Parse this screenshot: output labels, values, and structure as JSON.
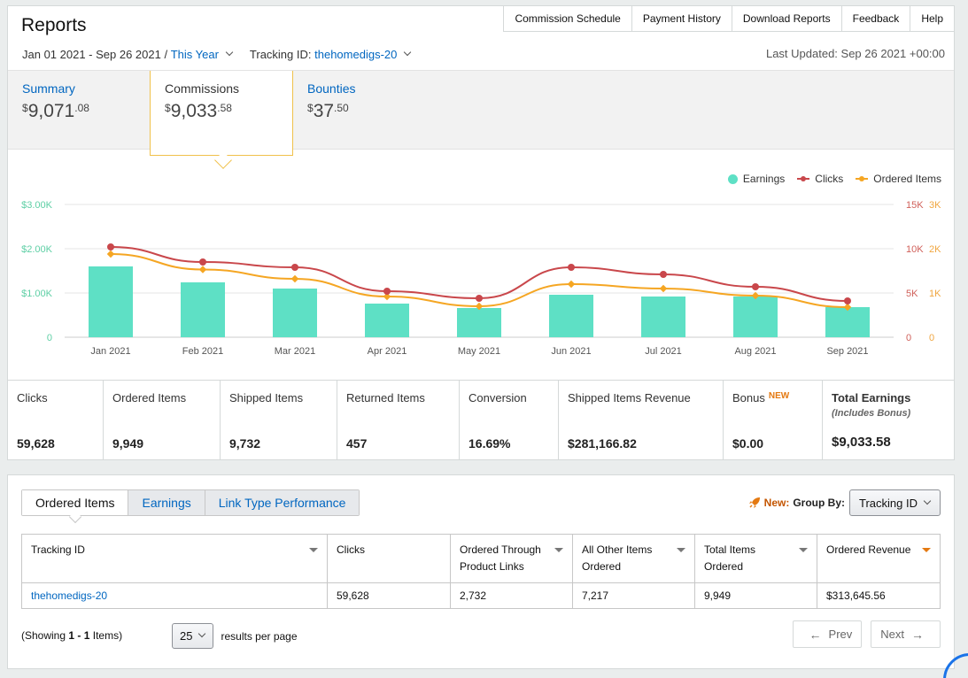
{
  "title": "Reports",
  "topnav": [
    "Commission Schedule",
    "Payment History",
    "Download Reports",
    "Feedback",
    "Help"
  ],
  "filters": {
    "date_range": "Jan 01 2021 - Sep 26 2021 /",
    "period": "This Year",
    "tracking_label": "Tracking ID:",
    "tracking_value": "thehomedigs-20"
  },
  "last_updated": "Last Updated: Sep 26 2021 +00:00",
  "summary_tabs": [
    {
      "label": "Summary",
      "currency": "$",
      "whole": "9,071",
      "cents": ".08"
    },
    {
      "label": "Commissions",
      "currency": "$",
      "whole": "9,033",
      "cents": ".58"
    },
    {
      "label": "Bounties",
      "currency": "$",
      "whole": "37",
      "cents": ".50"
    }
  ],
  "chart_data": {
    "type": "bar",
    "categories": [
      "Jan 2021",
      "Feb 2021",
      "Mar 2021",
      "Apr 2021",
      "May 2021",
      "Jun 2021",
      "Jul 2021",
      "Aug 2021",
      "Sep 2021"
    ],
    "series": [
      {
        "name": "Earnings",
        "type": "bar",
        "axis": "left",
        "color": "#5ee0c5",
        "values": [
          1600,
          1240,
          1100,
          760,
          660,
          960,
          920,
          920,
          680
        ]
      },
      {
        "name": "Clicks",
        "type": "line",
        "axis": "right1",
        "color": "#c9474b",
        "values": [
          10200,
          8500,
          7900,
          5200,
          4400,
          7900,
          7100,
          5700,
          4100
        ]
      },
      {
        "name": "Ordered Items",
        "type": "line",
        "axis": "right2",
        "color": "#f5a623",
        "values": [
          1880,
          1530,
          1320,
          920,
          700,
          1200,
          1100,
          940,
          680
        ]
      }
    ],
    "y_left": {
      "ticks": [
        "0",
        "$1.00K",
        "$2.00K",
        "$3.00K"
      ],
      "range": [
        0,
        3000
      ]
    },
    "y_right1": {
      "ticks": [
        "0",
        "5K",
        "10K",
        "15K"
      ],
      "range": [
        0,
        15000
      ]
    },
    "y_right2": {
      "ticks": [
        "0",
        "1K",
        "2K",
        "3K"
      ],
      "range": [
        0,
        3000
      ]
    },
    "legend": [
      "Earnings",
      "Clicks",
      "Ordered Items"
    ],
    "legend_position": "top-right",
    "grid": true
  },
  "stats": [
    {
      "label": "Clicks",
      "value": "59,628"
    },
    {
      "label": "Ordered Items",
      "value": "9,949"
    },
    {
      "label": "Shipped Items",
      "value": "9,732"
    },
    {
      "label": "Returned Items",
      "value": "457"
    },
    {
      "label": "Conversion",
      "value": "16.69%"
    },
    {
      "label": "Shipped Items Revenue",
      "value": "$281,166.82"
    },
    {
      "label": "Bonus",
      "badge": "NEW",
      "value": "$0.00"
    },
    {
      "label": "Total Earnings",
      "sub": "(Includes Bonus)",
      "value": "$9,033.58"
    }
  ],
  "bottom_tabs": [
    "Ordered Items",
    "Earnings",
    "Link Type Performance"
  ],
  "group_by": {
    "new": "New:",
    "label": "Group By:",
    "value": "Tracking ID"
  },
  "table": {
    "headers": [
      "Tracking ID",
      "Clicks",
      "Ordered Through Product Links",
      "All Other Items Ordered",
      "Total Items Ordered",
      "Ordered Revenue"
    ],
    "rows": [
      [
        "thehomedigs-20",
        "59,628",
        "2,732",
        "7,217",
        "9,949",
        "$313,645.56"
      ]
    ]
  },
  "pagination": {
    "showing_prefix": "(Showing",
    "showing_range": "1 - 1",
    "showing_suffix": "Items)",
    "per_page": "25",
    "per_page_label": "results per page",
    "prev": "Prev",
    "next": "Next"
  }
}
